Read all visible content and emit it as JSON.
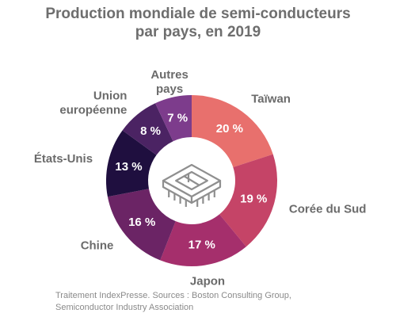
{
  "chart_data": {
    "type": "pie",
    "title_line1": "Production mondiale de semi-conducteurs",
    "title_line2": "par pays, en 2019",
    "categories": [
      "Taïwan",
      "Corée du Sud",
      "Japon",
      "Chine",
      "États-Unis",
      "Union|européenne",
      "Autres|pays"
    ],
    "values": [
      20,
      19,
      17,
      16,
      13,
      8,
      7
    ],
    "value_labels": [
      "20 %",
      "19 %",
      "17 %",
      "16 %",
      "13 %",
      "8 %",
      "7 %"
    ],
    "colors": [
      "#e8706d",
      "#c54467",
      "#a52f6c",
      "#6b2465",
      "#1f0f3f",
      "#4b2363",
      "#7d3c8c"
    ],
    "center_icon": "microchip-icon"
  },
  "source_line1": "Traitement IndexPresse. Sources : Boston Consulting Group,",
  "source_line2": "Semiconductor Industry Association"
}
